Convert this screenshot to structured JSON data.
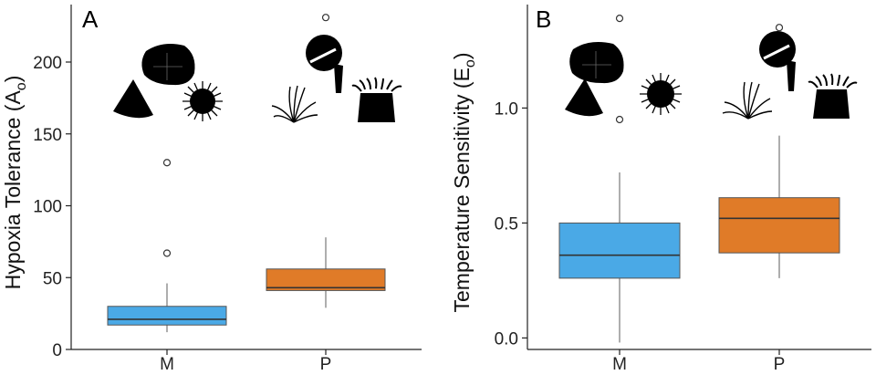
{
  "colors": {
    "M": "#4aa9e6",
    "P": "#e07b28"
  },
  "chart_data": [
    {
      "type": "box",
      "panel_label": "A",
      "ylabel_main": "Hypoxia Tolerance (A",
      "ylabel_sub": "o",
      "ylabel_close": ")",
      "categories": [
        "M",
        "P"
      ],
      "yticks": [
        0,
        50,
        100,
        150,
        200
      ],
      "ytick_labels": [
        "0",
        "50",
        "100",
        "150",
        "200"
      ],
      "ylim": [
        0,
        240
      ],
      "boxes": [
        {
          "category": "M",
          "whisker_low": 12,
          "q1": 17,
          "median": 21,
          "q3": 30,
          "whisker_high": 46,
          "outliers": [
            67,
            130
          ]
        },
        {
          "category": "P",
          "whisker_low": 29,
          "q1": 41,
          "median": 43,
          "q3": 56,
          "whisker_high": 78,
          "outliers": [
            231
          ]
        }
      ]
    },
    {
      "type": "box",
      "panel_label": "B",
      "ylabel_main": "Temperature Sensitivity (E",
      "ylabel_sub": "o",
      "ylabel_close": ")",
      "categories": [
        "M",
        "P"
      ],
      "yticks": [
        0.0,
        0.5,
        1.0
      ],
      "ytick_labels": [
        "0.0",
        "0.5",
        "1.0"
      ],
      "ylim": [
        -0.05,
        1.45
      ],
      "boxes": [
        {
          "category": "M",
          "whisker_low": -0.02,
          "q1": 0.26,
          "median": 0.36,
          "q3": 0.5,
          "whisker_high": 0.72,
          "outliers": [
            0.95,
            1.39
          ]
        },
        {
          "category": "P",
          "whisker_low": 0.26,
          "q1": 0.37,
          "median": 0.52,
          "q3": 0.61,
          "whisker_high": 0.88,
          "outliers": [
            1.35
          ]
        }
      ]
    }
  ]
}
